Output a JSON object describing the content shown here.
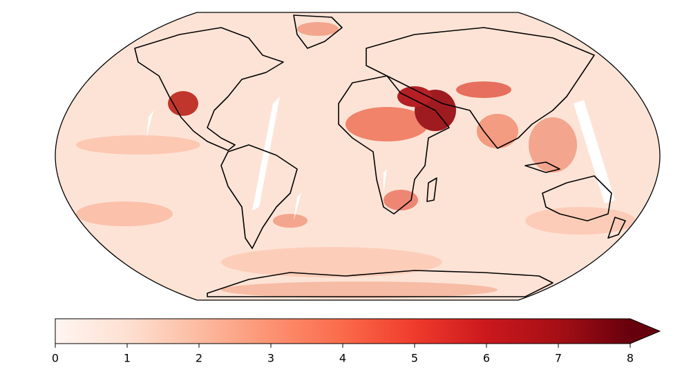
{
  "colorbar": {
    "lim": [
      0,
      8
    ],
    "ticks": [
      0,
      1,
      2,
      3,
      4,
      5,
      6,
      7,
      8
    ],
    "extend": "max",
    "colors": [
      "#fff5f0",
      "#fee0d2",
      "#fcbba1",
      "#fc9272",
      "#fb6a4a",
      "#ef3b2c",
      "#cb181d",
      "#a50f15",
      "#67000d"
    ]
  }
}
